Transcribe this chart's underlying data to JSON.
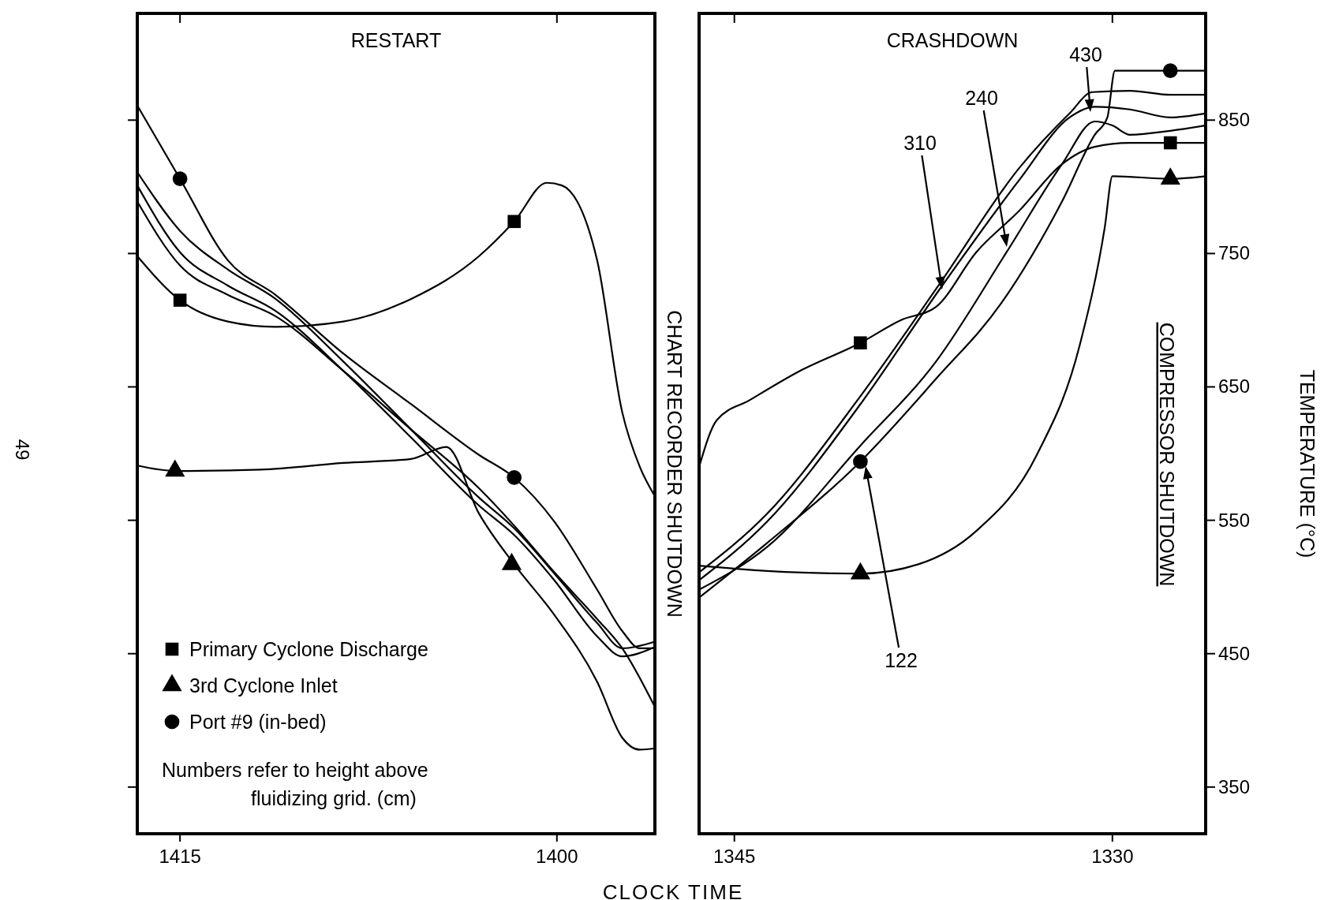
{
  "chart_data": [
    {
      "type": "line",
      "title": "RESTART",
      "xlabel": "CLOCK TIME",
      "xlim": [
        1416.7,
        1396.1
      ],
      "xticks": [
        1415,
        1400
      ],
      "ylim": [
        315,
        930
      ],
      "yticks": [
        350,
        450,
        550,
        650,
        750,
        850
      ],
      "tick_labels": "x",
      "legend": "bottom left",
      "grid": false,
      "annotations": [
        "CHART RECORDER SHUTDOWN",
        "Numbers refer to height above fluidizing grid. (cm)",
        "49"
      ],
      "series": [
        {
          "color": "#000000",
          "x": [
            1416.7,
            1415,
            1413.1,
            1411.2,
            1408.5,
            1405.8,
            1403.1,
            1401.7,
            1400.4,
            1399.8,
            1398.4,
            1397.4,
            1396.7,
            1396.1
          ],
          "values": [
            748,
            715,
            699,
            695,
            699,
            716,
            748,
            774,
            803,
            801,
            745,
            631,
            590,
            568
          ]
        },
        {
          "color": "#000000",
          "x": [
            1416.7,
            1415,
            1413.1,
            1411.2,
            1408.5,
            1405.8,
            1403.1,
            1401.7,
            1400.1,
            1398.4,
            1397.4,
            1396.7,
            1396.1
          ],
          "values": [
            861,
            806,
            745,
            719,
            675,
            637,
            599,
            582,
            549,
            498,
            467,
            454,
            454
          ]
        },
        {
          "color": "#000000",
          "x": [
            1416.7,
            1415.2,
            1411.8,
            1408.5,
            1405.8,
            1404.4,
            1403.1,
            1401.7,
            1400.1,
            1398.4,
            1397.4,
            1396.7,
            1396.1
          ],
          "values": [
            591,
            587,
            588,
            593,
            596,
            605,
            555,
            517,
            479,
            429,
            387,
            378,
            379
          ]
        },
        {
          "color": "#000000",
          "x": [
            1416.7,
            1415,
            1413.1,
            1411.2,
            1408.5,
            1405.8,
            1403.1,
            1401.7,
            1400.1,
            1398.4,
            1397.4,
            1396.1
          ],
          "values": [
            811,
            767,
            738,
            716,
            669,
            618,
            567,
            544,
            510,
            473,
            454,
            459
          ]
        },
        {
          "color": "#000000",
          "x": [
            1416.7,
            1415,
            1413.1,
            1411.2,
            1408.5,
            1405.8,
            1403.1,
            1401.7,
            1400.1,
            1398.4,
            1397.4,
            1396.1
          ],
          "values": [
            801,
            751,
            726,
            707,
            662,
            612,
            561,
            539,
            505,
            463,
            448,
            455
          ]
        },
        {
          "color": "#000000",
          "x": [
            1416.7,
            1415,
            1413.1,
            1411.2,
            1408.5,
            1405.8,
            1403.1,
            1401.7,
            1400.1,
            1398.4,
            1397.4,
            1396.1
          ],
          "values": [
            789,
            741,
            719,
            703,
            662,
            618,
            574,
            546,
            511,
            476,
            454,
            410
          ]
        },
        {
          "type": "scatter",
          "name": "Primary Cyclone Discharge",
          "marker": "square",
          "color": "#000000",
          "x": [
            1415,
            1401.7
          ],
          "values": [
            715,
            774
          ]
        },
        {
          "type": "scatter",
          "name": "3rd Cyclone Inlet",
          "marker": "triangle",
          "color": "#000000",
          "x": [
            1415.2,
            1401.8
          ],
          "values": [
            587,
            517
          ]
        },
        {
          "type": "scatter",
          "name": "Port #9 (in-bed)",
          "marker": "circle",
          "color": "#000000",
          "x": [
            1415,
            1401.7
          ],
          "values": [
            806,
            582
          ]
        }
      ]
    },
    {
      "type": "line",
      "title": "CRASHDOWN",
      "ylabel": "TEMPERATURE (°C)",
      "xlim": [
        1346.4,
        1326.3
      ],
      "xticks": [
        1345,
        1330
      ],
      "ylim": [
        315,
        930
      ],
      "yticks": [
        350,
        450,
        550,
        650,
        750,
        850
      ],
      "legend": false,
      "grid": false,
      "annotations": [
        "COMPRESSOR SHUTDOWN",
        "430",
        "240",
        "310",
        "122"
      ],
      "series": [
        {
          "color": "#000000",
          "x": [
            1346.4,
            1345.7,
            1344.4,
            1342.4,
            1340.0,
            1338.4,
            1337.0,
            1335.4,
            1333.7,
            1332.0,
            1330.7,
            1329.3,
            1327.7,
            1326.3
          ],
          "values": [
            590,
            625,
            640,
            662,
            683,
            700,
            710,
            751,
            782,
            817,
            830,
            833,
            833,
            833
          ]
        },
        {
          "color": "#000000",
          "x": [
            1346.4,
            1343.7,
            1340.0,
            1337.7,
            1335.4,
            1333.0,
            1331.3,
            1330.3,
            1330.0,
            1327.7,
            1326.3
          ],
          "values": [
            516,
            512,
            510,
            517,
            542,
            599,
            681,
            770,
            808,
            806,
            808
          ]
        },
        {
          "color": "#000000",
          "x": [
            1346.4,
            1343.7,
            1340.0,
            1337.0,
            1334.4,
            1332.0,
            1330.7,
            1330.2,
            1329.9,
            1327.7,
            1326.3
          ],
          "values": [
            492,
            533,
            594,
            656,
            713,
            789,
            839,
            852,
            887,
            887,
            887
          ]
        },
        {
          "color": "#000000",
          "x": [
            1346.4,
            1343.7,
            1340.0,
            1337.0,
            1334.2,
            1332.0,
            1330.7,
            1330.0,
            1329.3,
            1327.7,
            1326.3
          ],
          "values": [
            498,
            530,
            606,
            669,
            751,
            817,
            849,
            846,
            839,
            842,
            846
          ]
        },
        {
          "color": "#000000",
          "x": [
            1346.4,
            1343.7,
            1340.0,
            1336.9,
            1333.7,
            1331.7,
            1330.7,
            1329.3,
            1327.7,
            1326.3
          ],
          "values": [
            505,
            549,
            637,
            722,
            805,
            852,
            860,
            858,
            852,
            855
          ]
        },
        {
          "color": "#000000",
          "x": [
            1346.4,
            1343.7,
            1340.0,
            1336.9,
            1333.7,
            1331.7,
            1330.8,
            1329.3,
            1327.7,
            1326.3
          ],
          "values": [
            511,
            555,
            643,
            726,
            814,
            855,
            871,
            872,
            869,
            869
          ]
        },
        {
          "type": "scatter",
          "marker": "square",
          "color": "#000000",
          "x": [
            1340.0,
            1327.7
          ],
          "values": [
            683,
            833
          ]
        },
        {
          "type": "scatter",
          "marker": "triangle",
          "color": "#000000",
          "x": [
            1340.0,
            1327.7
          ],
          "values": [
            510,
            806
          ]
        },
        {
          "type": "scatter",
          "marker": "circle",
          "color": "#000000",
          "x": [
            1340.0,
            1327.7
          ],
          "values": [
            594,
            887
          ]
        }
      ]
    }
  ]
}
